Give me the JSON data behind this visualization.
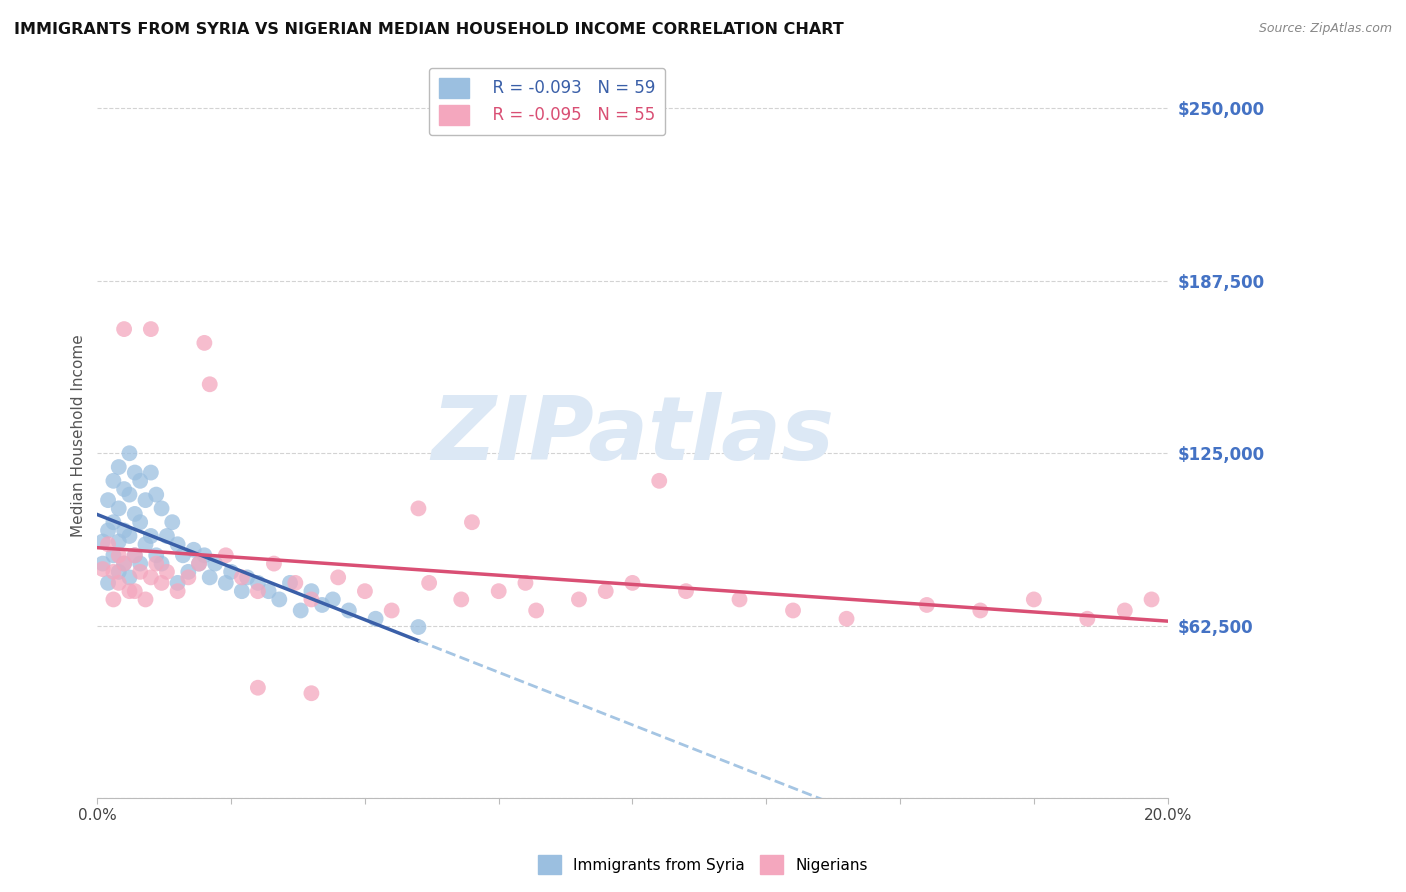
{
  "title": "IMMIGRANTS FROM SYRIA VS NIGERIAN MEDIAN HOUSEHOLD INCOME CORRELATION CHART",
  "source": "Source: ZipAtlas.com",
  "ylabel": "Median Household Income",
  "legend_bottom": [
    "Immigrants from Syria",
    "Nigerians"
  ],
  "legend_r1": "R = -0.093",
  "legend_n1": "N = 59",
  "legend_r2": "R = -0.095",
  "legend_n2": "N = 55",
  "yticks": [
    0,
    62500,
    125000,
    187500,
    250000
  ],
  "ytick_labels": [
    "",
    "$62,500",
    "$125,000",
    "$187,500",
    "$250,000"
  ],
  "xlim": [
    0.0,
    0.2
  ],
  "ylim": [
    0,
    262500
  ],
  "blue_scatter_color": "#9bbfe0",
  "pink_scatter_color": "#f4a7be",
  "blue_line_color": "#3a5fa8",
  "pink_line_color": "#d94f74",
  "dashed_line_color": "#9bbfe0",
  "grid_color": "#c8c8c8",
  "title_color": "#111111",
  "axis_label_color": "#4472c4",
  "watermark_color": "#dce8f5",
  "syria_x": [
    0.001,
    0.001,
    0.002,
    0.002,
    0.002,
    0.003,
    0.003,
    0.003,
    0.004,
    0.004,
    0.004,
    0.004,
    0.005,
    0.005,
    0.005,
    0.006,
    0.006,
    0.006,
    0.006,
    0.007,
    0.007,
    0.007,
    0.008,
    0.008,
    0.008,
    0.009,
    0.009,
    0.01,
    0.01,
    0.011,
    0.011,
    0.012,
    0.012,
    0.013,
    0.014,
    0.015,
    0.015,
    0.016,
    0.017,
    0.018,
    0.019,
    0.02,
    0.021,
    0.022,
    0.024,
    0.025,
    0.027,
    0.028,
    0.03,
    0.032,
    0.034,
    0.036,
    0.038,
    0.04,
    0.042,
    0.044,
    0.047,
    0.052,
    0.06
  ],
  "syria_y": [
    93000,
    85000,
    108000,
    97000,
    78000,
    115000,
    100000,
    88000,
    120000,
    105000,
    93000,
    82000,
    112000,
    97000,
    85000,
    125000,
    110000,
    95000,
    80000,
    118000,
    103000,
    88000,
    115000,
    100000,
    85000,
    108000,
    92000,
    118000,
    95000,
    110000,
    88000,
    105000,
    85000,
    95000,
    100000,
    92000,
    78000,
    88000,
    82000,
    90000,
    85000,
    88000,
    80000,
    85000,
    78000,
    82000,
    75000,
    80000,
    78000,
    75000,
    72000,
    78000,
    68000,
    75000,
    70000,
    72000,
    68000,
    65000,
    62000
  ],
  "nigeria_x": [
    0.001,
    0.002,
    0.003,
    0.003,
    0.004,
    0.004,
    0.005,
    0.006,
    0.007,
    0.007,
    0.008,
    0.009,
    0.01,
    0.011,
    0.012,
    0.013,
    0.015,
    0.017,
    0.019,
    0.021,
    0.024,
    0.027,
    0.03,
    0.033,
    0.037,
    0.04,
    0.045,
    0.05,
    0.055,
    0.062,
    0.068,
    0.075,
    0.082,
    0.09,
    0.1,
    0.11,
    0.12,
    0.13,
    0.14,
    0.155,
    0.165,
    0.175,
    0.185,
    0.192,
    0.197,
    0.06,
    0.07,
    0.08,
    0.095,
    0.105,
    0.005,
    0.01,
    0.02,
    0.03,
    0.04
  ],
  "nigeria_y": [
    83000,
    92000,
    82000,
    72000,
    88000,
    78000,
    85000,
    75000,
    88000,
    75000,
    82000,
    72000,
    80000,
    85000,
    78000,
    82000,
    75000,
    80000,
    85000,
    150000,
    88000,
    80000,
    75000,
    85000,
    78000,
    72000,
    80000,
    75000,
    68000,
    78000,
    72000,
    75000,
    68000,
    72000,
    78000,
    75000,
    72000,
    68000,
    65000,
    70000,
    68000,
    72000,
    65000,
    68000,
    72000,
    105000,
    100000,
    78000,
    75000,
    115000,
    170000,
    170000,
    165000,
    40000,
    38000
  ]
}
